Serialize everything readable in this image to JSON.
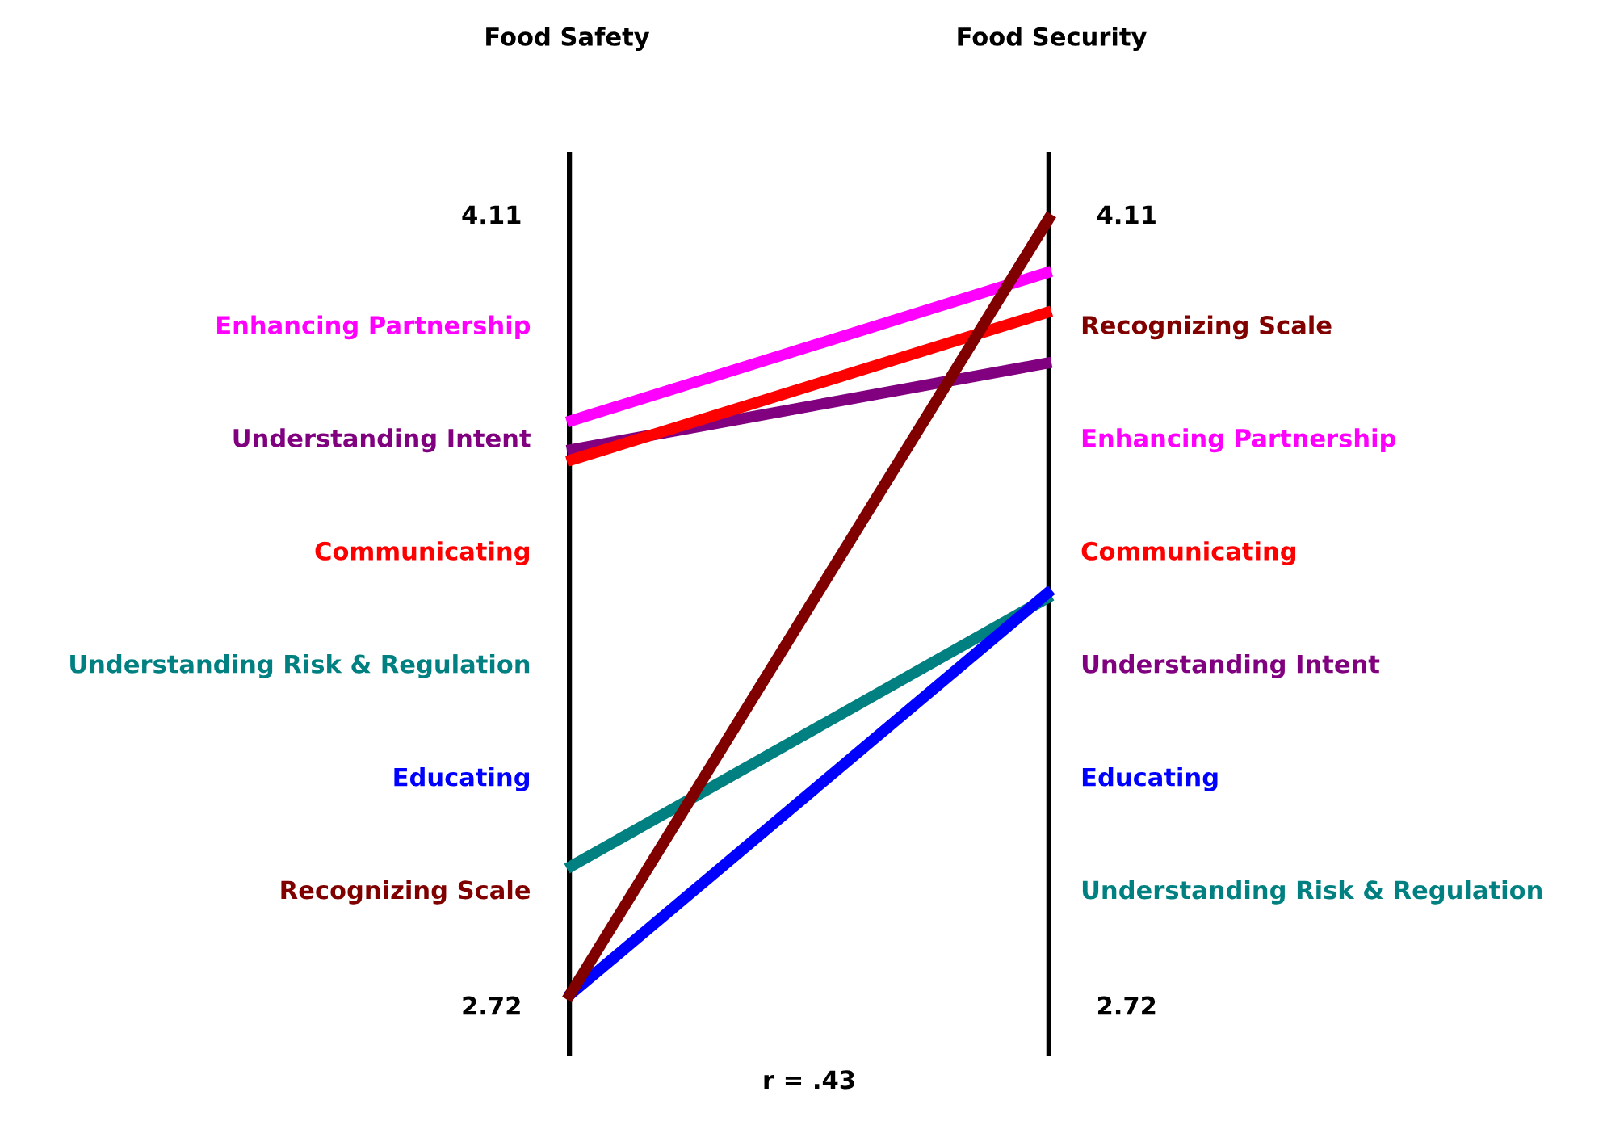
{
  "chart_data": {
    "type": "line",
    "categories": [
      "Food Safety",
      "Food Security"
    ],
    "series": [
      {
        "name": "Enhancing Partnership",
        "color": "#ff00ff",
        "values": [
          3.745,
          4.01
        ]
      },
      {
        "name": "Understanding Intent",
        "color": "#800080",
        "values": [
          3.695,
          3.85
        ]
      },
      {
        "name": "Communicating",
        "color": "#ff0000",
        "values": [
          3.676,
          3.94
        ]
      },
      {
        "name": "Understanding Risk & Regulation",
        "color": "#008080",
        "values": [
          2.96,
          3.44
        ]
      },
      {
        "name": "Educating",
        "color": "#0000ff",
        "values": [
          2.734,
          3.45
        ]
      },
      {
        "name": "Recognizing Scale",
        "color": "#800000",
        "values": [
          2.73,
          4.11
        ]
      }
    ],
    "ylim": [
      2.63,
      4.22
    ],
    "yticks": [
      2.72,
      4.11
    ],
    "y2lim": [
      2.63,
      4.22
    ],
    "y2ticks": [
      2.72,
      4.11
    ],
    "annotations": [
      "r = .43"
    ],
    "legend": false,
    "grid": "x",
    "marker": "none",
    "line_style": "solid"
  }
}
